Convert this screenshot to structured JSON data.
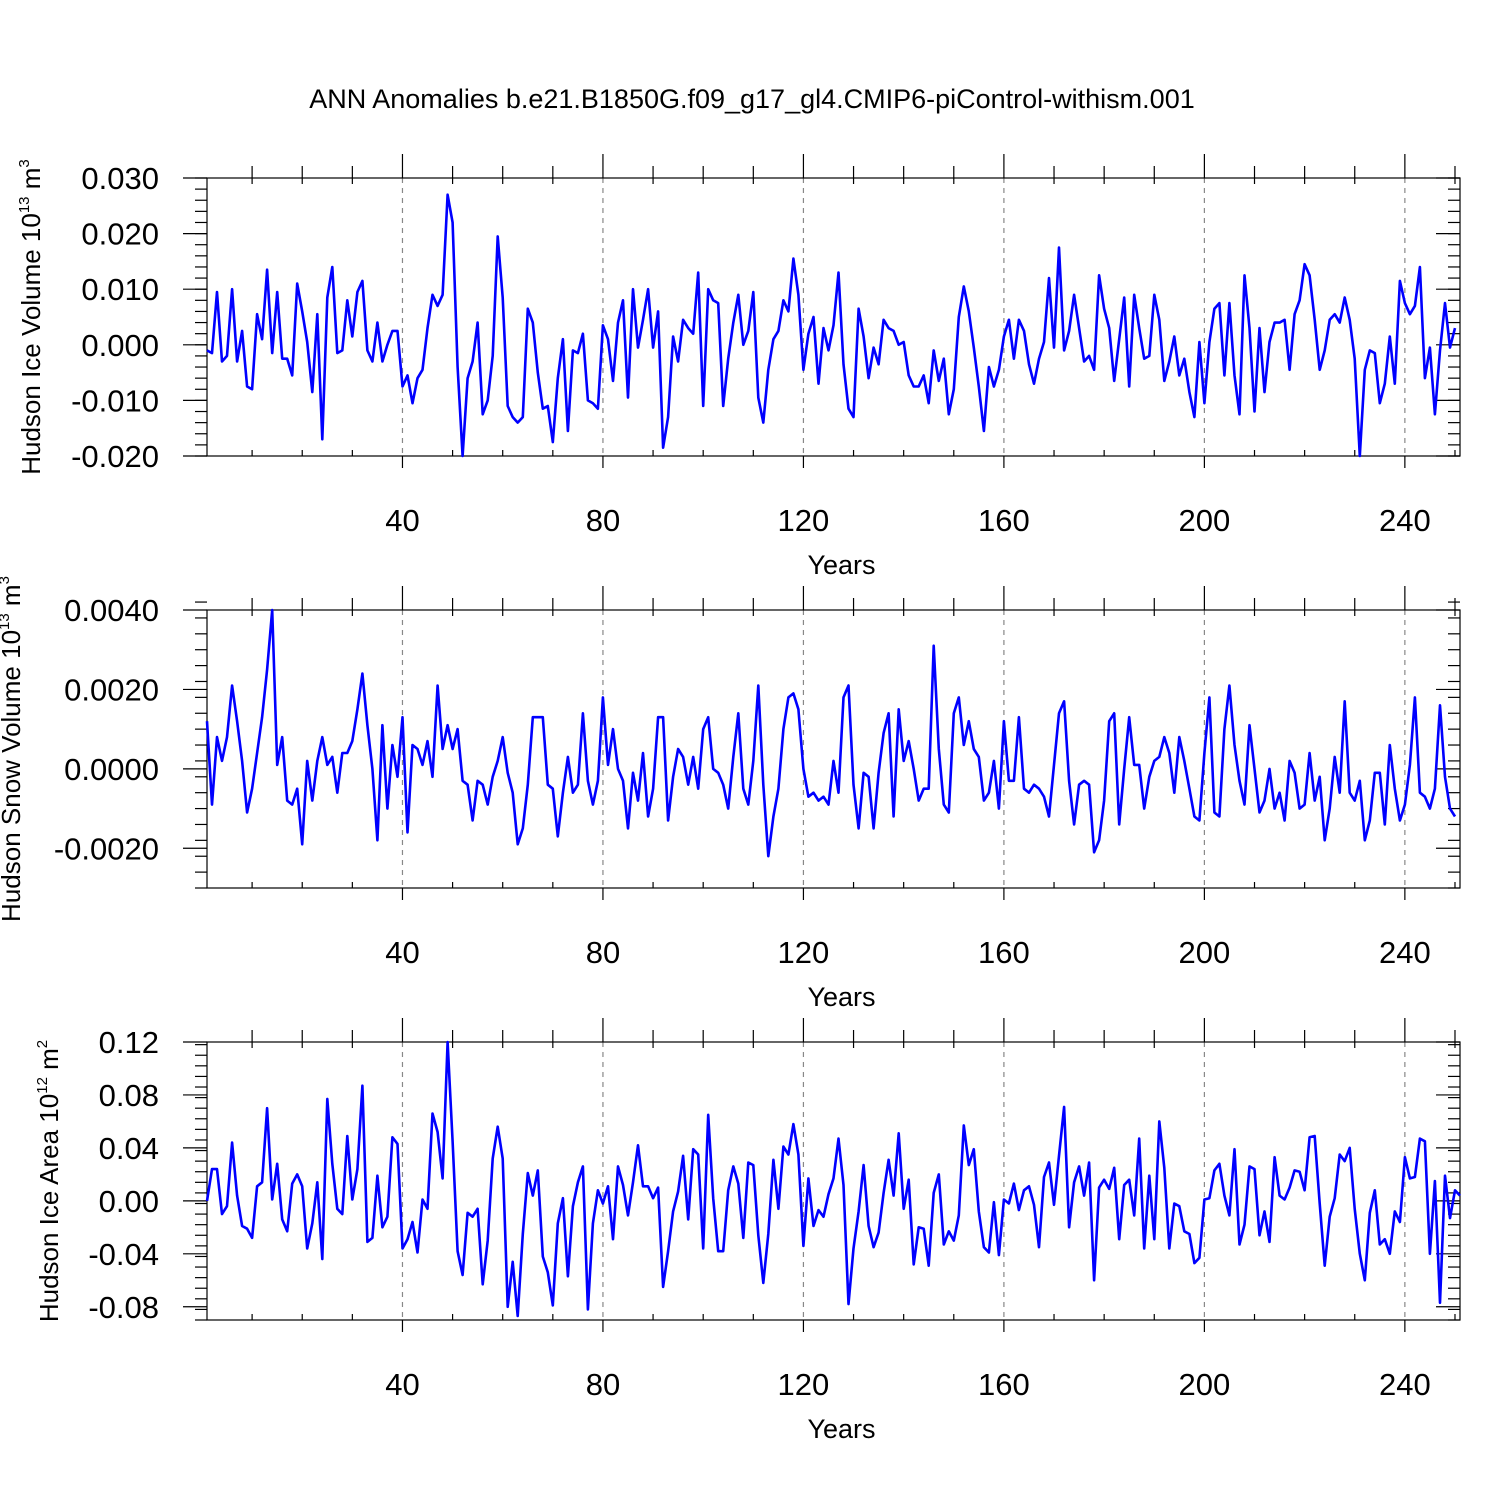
{
  "title": "ANN Anomalies b.e21.B1850G.f09_g17_gl4.CMIP6-piControl-withism.001",
  "colors": {
    "series": "#0000ff",
    "grid": "#888888",
    "axis": "#000000"
  },
  "chart_data": [
    {
      "type": "line",
      "ylabel": {
        "base": "Hudson Ice Volume 10",
        "exp1": "13",
        "unit": " m",
        "exp2": "3"
      },
      "xlabel": "Years",
      "xlim": [
        1,
        251
      ],
      "ylim": [
        -0.02,
        0.03
      ],
      "xticks": [
        40,
        80,
        120,
        160,
        200,
        240
      ],
      "yticks": [
        -0.02,
        -0.01,
        0.0,
        0.01,
        0.02,
        0.03
      ],
      "ytick_labels": [
        "-0.020",
        "-0.010",
        "0.000",
        "0.010",
        "0.020",
        "0.030"
      ],
      "grid": "vertical dashed",
      "series": [
        {
          "values": [
            -0.001,
            -0.0015,
            0.0095,
            -0.003,
            -0.002,
            0.01,
            -0.003,
            0.0025,
            -0.0075,
            -0.008,
            0.0055,
            0.001,
            0.0135,
            -0.0015,
            0.0095,
            -0.0025,
            -0.0025,
            -0.0055,
            0.011,
            0.006,
            0.0005,
            -0.0085,
            0.0055,
            -0.017,
            0.0085,
            0.014,
            -0.0015,
            -0.001,
            0.008,
            0.0015,
            0.0095,
            0.0115,
            -0.001,
            -0.003,
            0.004,
            -0.003,
            0.0,
            0.0025,
            0.0025,
            -0.0075,
            -0.0055,
            -0.0105,
            -0.006,
            -0.0045,
            0.003,
            0.009,
            0.007,
            0.009,
            0.027,
            0.022,
            -0.004,
            -0.02,
            -0.006,
            -0.003,
            0.004,
            -0.0125,
            -0.01,
            -0.002,
            0.0195,
            0.0085,
            -0.011,
            -0.013,
            -0.014,
            -0.013,
            0.0065,
            0.004,
            -0.005,
            -0.0115,
            -0.011,
            -0.0175,
            -0.006,
            0.001,
            -0.0155,
            -0.001,
            -0.0015,
            0.002,
            -0.01,
            -0.0105,
            -0.0115,
            0.0035,
            0.001,
            -0.0065,
            0.004,
            0.008,
            -0.0095,
            0.01,
            -0.0005,
            0.0045,
            0.01,
            -0.0005,
            0.006,
            -0.0185,
            -0.013,
            0.0015,
            -0.003,
            0.0045,
            0.003,
            0.002,
            0.013,
            -0.011,
            0.01,
            0.008,
            0.0075,
            -0.011,
            -0.0025,
            0.004,
            0.009,
            0.0,
            0.0025,
            0.0095,
            -0.0095,
            -0.014,
            -0.0045,
            0.001,
            0.0025,
            0.008,
            0.006,
            0.0155,
            0.009,
            -0.0045,
            0.002,
            0.005,
            -0.007,
            0.003,
            -0.001,
            0.0035,
            0.013,
            -0.0035,
            -0.0115,
            -0.013,
            0.0065,
            0.0015,
            -0.006,
            -0.0005,
            -0.0035,
            0.0045,
            0.003,
            0.0025,
            0.0,
            0.0005,
            -0.0055,
            -0.0075,
            -0.0075,
            -0.0055,
            -0.0105,
            -0.001,
            -0.0065,
            -0.0025,
            -0.0125,
            -0.008,
            0.005,
            0.0105,
            0.006,
            -0.0005,
            -0.0075,
            -0.0155,
            -0.004,
            -0.0075,
            -0.0045,
            0.0015,
            0.0045,
            -0.0025,
            0.0045,
            0.0025,
            -0.0035,
            -0.007,
            -0.0025,
            0.0005,
            0.012,
            -0.0005,
            0.0175,
            -0.001,
            0.0025,
            0.009,
            0.003,
            -0.003,
            -0.002,
            -0.0045,
            0.0125,
            0.0065,
            0.003,
            -0.0065,
            0.001,
            0.0085,
            -0.0075,
            0.009,
            0.003,
            -0.0025,
            -0.002,
            0.009,
            0.0045,
            -0.0065,
            -0.003,
            0.0015,
            -0.0055,
            -0.0025,
            -0.0085,
            -0.013,
            0.0005,
            -0.0105,
            0.0005,
            0.0065,
            0.0075,
            -0.0055,
            0.0075,
            -0.0055,
            -0.0125,
            0.0125,
            0.003,
            -0.012,
            0.003,
            -0.0085,
            0.0005,
            0.004,
            0.004,
            0.0045,
            -0.0045,
            0.0055,
            0.008,
            0.0145,
            0.0125,
            0.0045,
            -0.0045,
            -0.001,
            0.0045,
            0.0055,
            0.004,
            0.0085,
            0.0045,
            -0.0025,
            -0.02,
            -0.0045,
            -0.001,
            -0.0015,
            -0.0105,
            -0.007,
            0.0015,
            -0.007,
            0.0115,
            0.0075,
            0.0055,
            0.007,
            0.014,
            -0.006,
            -0.0005,
            -0.0125,
            -0.001,
            0.0075,
            -0.0005,
            0.003
          ]
        }
      ]
    },
    {
      "type": "line",
      "ylabel": {
        "base": "Hudson Snow Volume 10",
        "exp1": "13",
        "unit": " m",
        "exp2": "3"
      },
      "xlabel": "Years",
      "xlim": [
        1,
        251
      ],
      "ylim": [
        -0.003,
        0.004
      ],
      "xticks": [
        40,
        80,
        120,
        160,
        200,
        240
      ],
      "yticks": [
        -0.002,
        0.0,
        0.002,
        0.004
      ],
      "ytick_labels": [
        "-0.0020",
        "0.0000",
        "0.0020",
        "0.0040"
      ],
      "grid": "vertical dashed",
      "series": [
        {
          "values": [
            0.0012,
            -0.0009,
            0.0008,
            0.0002,
            0.0008,
            0.0021,
            0.0012,
            0.0002,
            -0.0011,
            -0.0005,
            0.0004,
            0.0013,
            0.0025,
            0.004,
            0.0001,
            0.0008,
            -0.0008,
            -0.0009,
            -0.0005,
            -0.0019,
            0.0002,
            -0.0008,
            0.0002,
            0.0008,
            0.0001,
            0.0003,
            -0.0006,
            0.0004,
            0.0004,
            0.0007,
            0.0015,
            0.0024,
            0.0011,
            0.0,
            -0.0018,
            0.0011,
            -0.001,
            0.0006,
            -0.0002,
            0.0013,
            -0.0016,
            0.0006,
            0.0005,
            0.0001,
            0.0007,
            -0.0002,
            0.0021,
            0.0005,
            0.0011,
            0.0005,
            0.001,
            -0.0003,
            -0.0004,
            -0.0013,
            -0.0003,
            -0.0004,
            -0.0009,
            -0.0002,
            0.0002,
            0.0008,
            -0.0001,
            -0.0006,
            -0.0019,
            -0.0015,
            -0.0004,
            0.0013,
            0.0013,
            0.0013,
            -0.0004,
            -0.0005,
            -0.0017,
            -0.0006,
            0.0003,
            -0.0006,
            -0.0004,
            0.0014,
            -0.0003,
            -0.0009,
            -0.0003,
            0.0018,
            0.0001,
            0.001,
            0.0,
            -0.0003,
            -0.0015,
            -0.0001,
            -0.0008,
            0.0004,
            -0.0012,
            -0.0005,
            0.0013,
            0.0013,
            -0.0013,
            -0.0002,
            0.0005,
            0.0003,
            -0.0004,
            0.0003,
            -0.0005,
            0.001,
            0.0013,
            0.0,
            -0.0001,
            -0.0004,
            -0.001,
            0.0003,
            0.0014,
            -0.0005,
            -0.0009,
            0.0002,
            0.0021,
            -0.0004,
            -0.0022,
            -0.0012,
            -0.0005,
            0.001,
            0.0018,
            0.0019,
            0.0015,
            0.0,
            -0.0007,
            -0.0006,
            -0.0008,
            -0.0007,
            -0.0009,
            0.0002,
            -0.0006,
            0.0018,
            0.0021,
            -0.0004,
            -0.0015,
            -0.0001,
            -0.0002,
            -0.0015,
            -0.0001,
            0.0009,
            0.0014,
            -0.0012,
            0.0015,
            0.0002,
            0.0007,
            0.0,
            -0.0008,
            -0.0005,
            -0.0005,
            0.0031,
            0.0005,
            -0.0009,
            -0.0011,
            0.0014,
            0.0018,
            0.0006,
            0.0012,
            0.0005,
            0.0003,
            -0.0008,
            -0.0006,
            0.0002,
            -0.001,
            0.0012,
            -0.0003,
            -0.0003,
            0.0013,
            -0.0005,
            -0.0006,
            -0.0004,
            -0.0005,
            -0.0007,
            -0.0012,
            0.0001,
            0.0014,
            0.0017,
            -0.0003,
            -0.0014,
            -0.0004,
            -0.0003,
            -0.0004,
            -0.0021,
            -0.0018,
            -0.0008,
            0.0012,
            0.0014,
            -0.0014,
            0.0,
            0.0013,
            0.0001,
            0.0001,
            -0.001,
            -0.0002,
            0.0002,
            0.0003,
            0.0008,
            0.0004,
            -0.0006,
            0.0008,
            0.0002,
            -0.0005,
            -0.0012,
            -0.0013,
            0.0004,
            0.0018,
            -0.0011,
            -0.0012,
            0.001,
            0.0021,
            0.0006,
            -0.0003,
            -0.0009,
            0.0011,
            0.0,
            -0.0011,
            -0.0008,
            0.0,
            -0.001,
            -0.0006,
            -0.0013,
            0.0002,
            -0.0001,
            -0.001,
            -0.0009,
            0.0004,
            -0.0008,
            -0.0002,
            -0.0018,
            -0.001,
            0.0003,
            -0.0006,
            0.0017,
            -0.0006,
            -0.0008,
            -0.0003,
            -0.0018,
            -0.0013,
            -0.0001,
            -0.0001,
            -0.0014,
            0.0006,
            -0.0005,
            -0.0013,
            -0.0009,
            0.0001,
            0.0018,
            -0.0006,
            -0.0007,
            -0.001,
            -0.0005,
            0.0016,
            -0.0002,
            -0.001,
            -0.0012
          ]
        }
      ]
    },
    {
      "type": "line",
      "ylabel": {
        "base": "Hudson Ice Area 10",
        "exp1": "12",
        "unit": " m",
        "exp2": "2"
      },
      "xlabel": "Years",
      "xlim": [
        1,
        251
      ],
      "ylim": [
        -0.09,
        0.12
      ],
      "xticks": [
        40,
        80,
        120,
        160,
        200,
        240
      ],
      "yticks": [
        -0.08,
        -0.04,
        0.0,
        0.04,
        0.08,
        0.12
      ],
      "ytick_labels": [
        "-0.08",
        "-0.04",
        "0.00",
        "0.04",
        "0.08",
        "0.12"
      ],
      "grid": "vertical dashed",
      "series": [
        {
          "values": [
            0.0,
            0.024,
            0.024,
            -0.01,
            -0.004,
            0.044,
            0.004,
            -0.019,
            -0.021,
            -0.028,
            0.011,
            0.014,
            0.07,
            0.001,
            0.028,
            -0.014,
            -0.023,
            0.013,
            0.02,
            0.011,
            -0.036,
            -0.017,
            0.014,
            -0.044,
            0.077,
            0.028,
            -0.006,
            -0.01,
            0.049,
            0.001,
            0.024,
            0.087,
            -0.031,
            -0.028,
            0.019,
            -0.02,
            -0.012,
            0.048,
            0.043,
            -0.036,
            -0.029,
            -0.016,
            -0.039,
            0.001,
            -0.006,
            0.066,
            0.052,
            0.017,
            0.12,
            0.045,
            -0.038,
            -0.056,
            -0.009,
            -0.012,
            -0.006,
            -0.063,
            -0.03,
            0.032,
            0.056,
            0.032,
            -0.08,
            -0.046,
            -0.087,
            -0.025,
            0.021,
            0.004,
            0.023,
            -0.042,
            -0.054,
            -0.079,
            -0.017,
            0.002,
            -0.057,
            -0.004,
            0.014,
            0.026,
            -0.082,
            -0.017,
            0.008,
            -0.002,
            0.011,
            -0.029,
            0.026,
            0.012,
            -0.011,
            0.014,
            0.042,
            0.011,
            0.011,
            0.002,
            0.01,
            -0.065,
            -0.038,
            -0.008,
            0.007,
            0.034,
            -0.014,
            0.039,
            0.035,
            -0.036,
            0.065,
            0.002,
            -0.038,
            -0.038,
            0.008,
            0.026,
            0.013,
            -0.028,
            0.029,
            0.027,
            -0.026,
            -0.062,
            -0.025,
            0.031,
            -0.006,
            0.041,
            0.035,
            0.058,
            0.035,
            -0.034,
            0.017,
            -0.019,
            -0.007,
            -0.012,
            0.005,
            0.017,
            0.047,
            0.012,
            -0.078,
            -0.036,
            -0.008,
            0.027,
            -0.019,
            -0.035,
            -0.024,
            0.006,
            0.031,
            0.004,
            0.051,
            -0.006,
            0.016,
            -0.048,
            -0.02,
            -0.021,
            -0.049,
            0.006,
            0.02,
            -0.033,
            -0.023,
            -0.03,
            -0.011,
            0.057,
            0.027,
            0.039,
            -0.008,
            -0.035,
            -0.039,
            -0.001,
            -0.041,
            0.001,
            -0.002,
            0.013,
            -0.007,
            0.008,
            0.011,
            -0.003,
            -0.035,
            0.018,
            0.029,
            -0.003,
            0.034,
            0.071,
            -0.02,
            0.014,
            0.026,
            0.004,
            0.029,
            -0.06,
            0.01,
            0.016,
            0.009,
            0.025,
            -0.029,
            0.012,
            0.016,
            -0.011,
            0.047,
            -0.036,
            0.019,
            -0.029,
            0.06,
            0.025,
            -0.036,
            -0.002,
            -0.004,
            -0.023,
            -0.025,
            -0.047,
            -0.043,
            0.001,
            0.002,
            0.023,
            0.028,
            0.004,
            -0.011,
            0.039,
            -0.033,
            -0.018,
            0.026,
            0.024,
            -0.026,
            -0.008,
            -0.031,
            0.033,
            0.004,
            0.001,
            0.01,
            0.023,
            0.022,
            0.008,
            0.048,
            0.049,
            -0.002,
            -0.049,
            -0.012,
            0.002,
            0.035,
            0.03,
            0.04,
            -0.006,
            -0.04,
            -0.06,
            -0.009,
            0.008,
            -0.033,
            -0.029,
            -0.04,
            -0.008,
            -0.016,
            0.033,
            0.017,
            0.018,
            0.047,
            0.045,
            -0.04,
            0.015,
            -0.077,
            0.019,
            -0.013,
            0.008,
            0.004
          ]
        }
      ]
    }
  ]
}
